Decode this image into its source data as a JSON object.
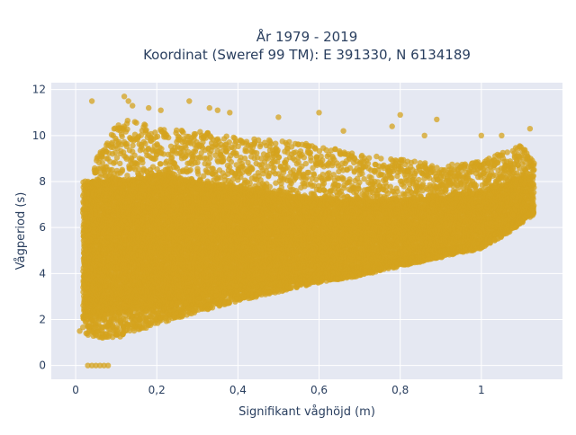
{
  "chart_data": {
    "type": "scatter",
    "title_line1": "År 1979 - 2019",
    "title_line2": "Koordinat (Sweref 99 TM): E 391330, N 6134189",
    "xlabel": "Signifikant våghöjd (m)",
    "ylabel": "Vågperiod (s)",
    "xlim": [
      -0.06,
      1.2
    ],
    "ylim": [
      -0.6,
      12.3
    ],
    "xticks": [
      0,
      0.2,
      0.4,
      0.6,
      0.8,
      1
    ],
    "xtick_labels": [
      "0",
      "0,2",
      "0,4",
      "0,6",
      "0,8",
      "1"
    ],
    "yticks": [
      0,
      2,
      4,
      6,
      8,
      10,
      12
    ],
    "ytick_labels": [
      "0",
      "2",
      "4",
      "6",
      "8",
      "10",
      "12"
    ],
    "grid": true,
    "legend": "none",
    "series": [
      {
        "color": "#d4a31d",
        "lower_envelope": [
          [
            0.02,
            1.4
          ],
          [
            0.05,
            1.2
          ],
          [
            0.1,
            1.2
          ],
          [
            0.2,
            1.8
          ],
          [
            0.3,
            2.3
          ],
          [
            0.4,
            2.8
          ],
          [
            0.5,
            3.2
          ],
          [
            0.6,
            3.6
          ],
          [
            0.7,
            3.9
          ],
          [
            0.8,
            4.3
          ],
          [
            0.9,
            4.7
          ],
          [
            1.0,
            5.1
          ],
          [
            1.05,
            5.6
          ],
          [
            1.1,
            6.2
          ],
          [
            1.13,
            7.0
          ]
        ],
        "upper_envelope": [
          [
            0.02,
            3.0
          ],
          [
            0.05,
            9.0
          ],
          [
            0.1,
            10.5
          ],
          [
            0.15,
            10.8
          ],
          [
            0.2,
            10.3
          ],
          [
            0.3,
            10.2
          ],
          [
            0.4,
            9.9
          ],
          [
            0.5,
            9.8
          ],
          [
            0.6,
            9.6
          ],
          [
            0.7,
            9.2
          ],
          [
            0.8,
            9.0
          ],
          [
            0.9,
            8.7
          ],
          [
            1.0,
            8.9
          ],
          [
            1.1,
            9.6
          ],
          [
            1.13,
            8.8
          ]
        ],
        "dense_band": [
          [
            0.05,
            2.2,
            8.0
          ],
          [
            0.2,
            2.6,
            8.3
          ],
          [
            0.4,
            3.3,
            7.8
          ],
          [
            0.6,
            4.0,
            7.3
          ],
          [
            0.8,
            4.6,
            7.2
          ],
          [
            1.0,
            5.4,
            7.6
          ],
          [
            1.1,
            6.5,
            8.2
          ]
        ],
        "points": [
          [
            0.12,
            11.7
          ],
          [
            0.13,
            11.5
          ],
          [
            0.14,
            11.3
          ],
          [
            0.18,
            11.2
          ],
          [
            0.21,
            11.1
          ],
          [
            0.28,
            11.5
          ],
          [
            0.33,
            11.2
          ],
          [
            0.35,
            11.1
          ],
          [
            0.38,
            11.0
          ],
          [
            0.5,
            10.8
          ],
          [
            0.6,
            11.0
          ],
          [
            0.66,
            10.2
          ],
          [
            0.78,
            10.4
          ],
          [
            0.8,
            10.9
          ],
          [
            0.86,
            10.0
          ],
          [
            0.89,
            10.7
          ],
          [
            1.0,
            10.0
          ],
          [
            1.05,
            10.0
          ],
          [
            1.12,
            10.3
          ],
          [
            0.04,
            11.5
          ],
          [
            0.02,
            3.5
          ],
          [
            0.01,
            1.5
          ],
          [
            0.03,
            0.0
          ],
          [
            0.04,
            0.0
          ],
          [
            0.05,
            0.0
          ],
          [
            0.06,
            0.0
          ],
          [
            0.07,
            0.0
          ],
          [
            0.08,
            0.0
          ]
        ]
      }
    ]
  }
}
